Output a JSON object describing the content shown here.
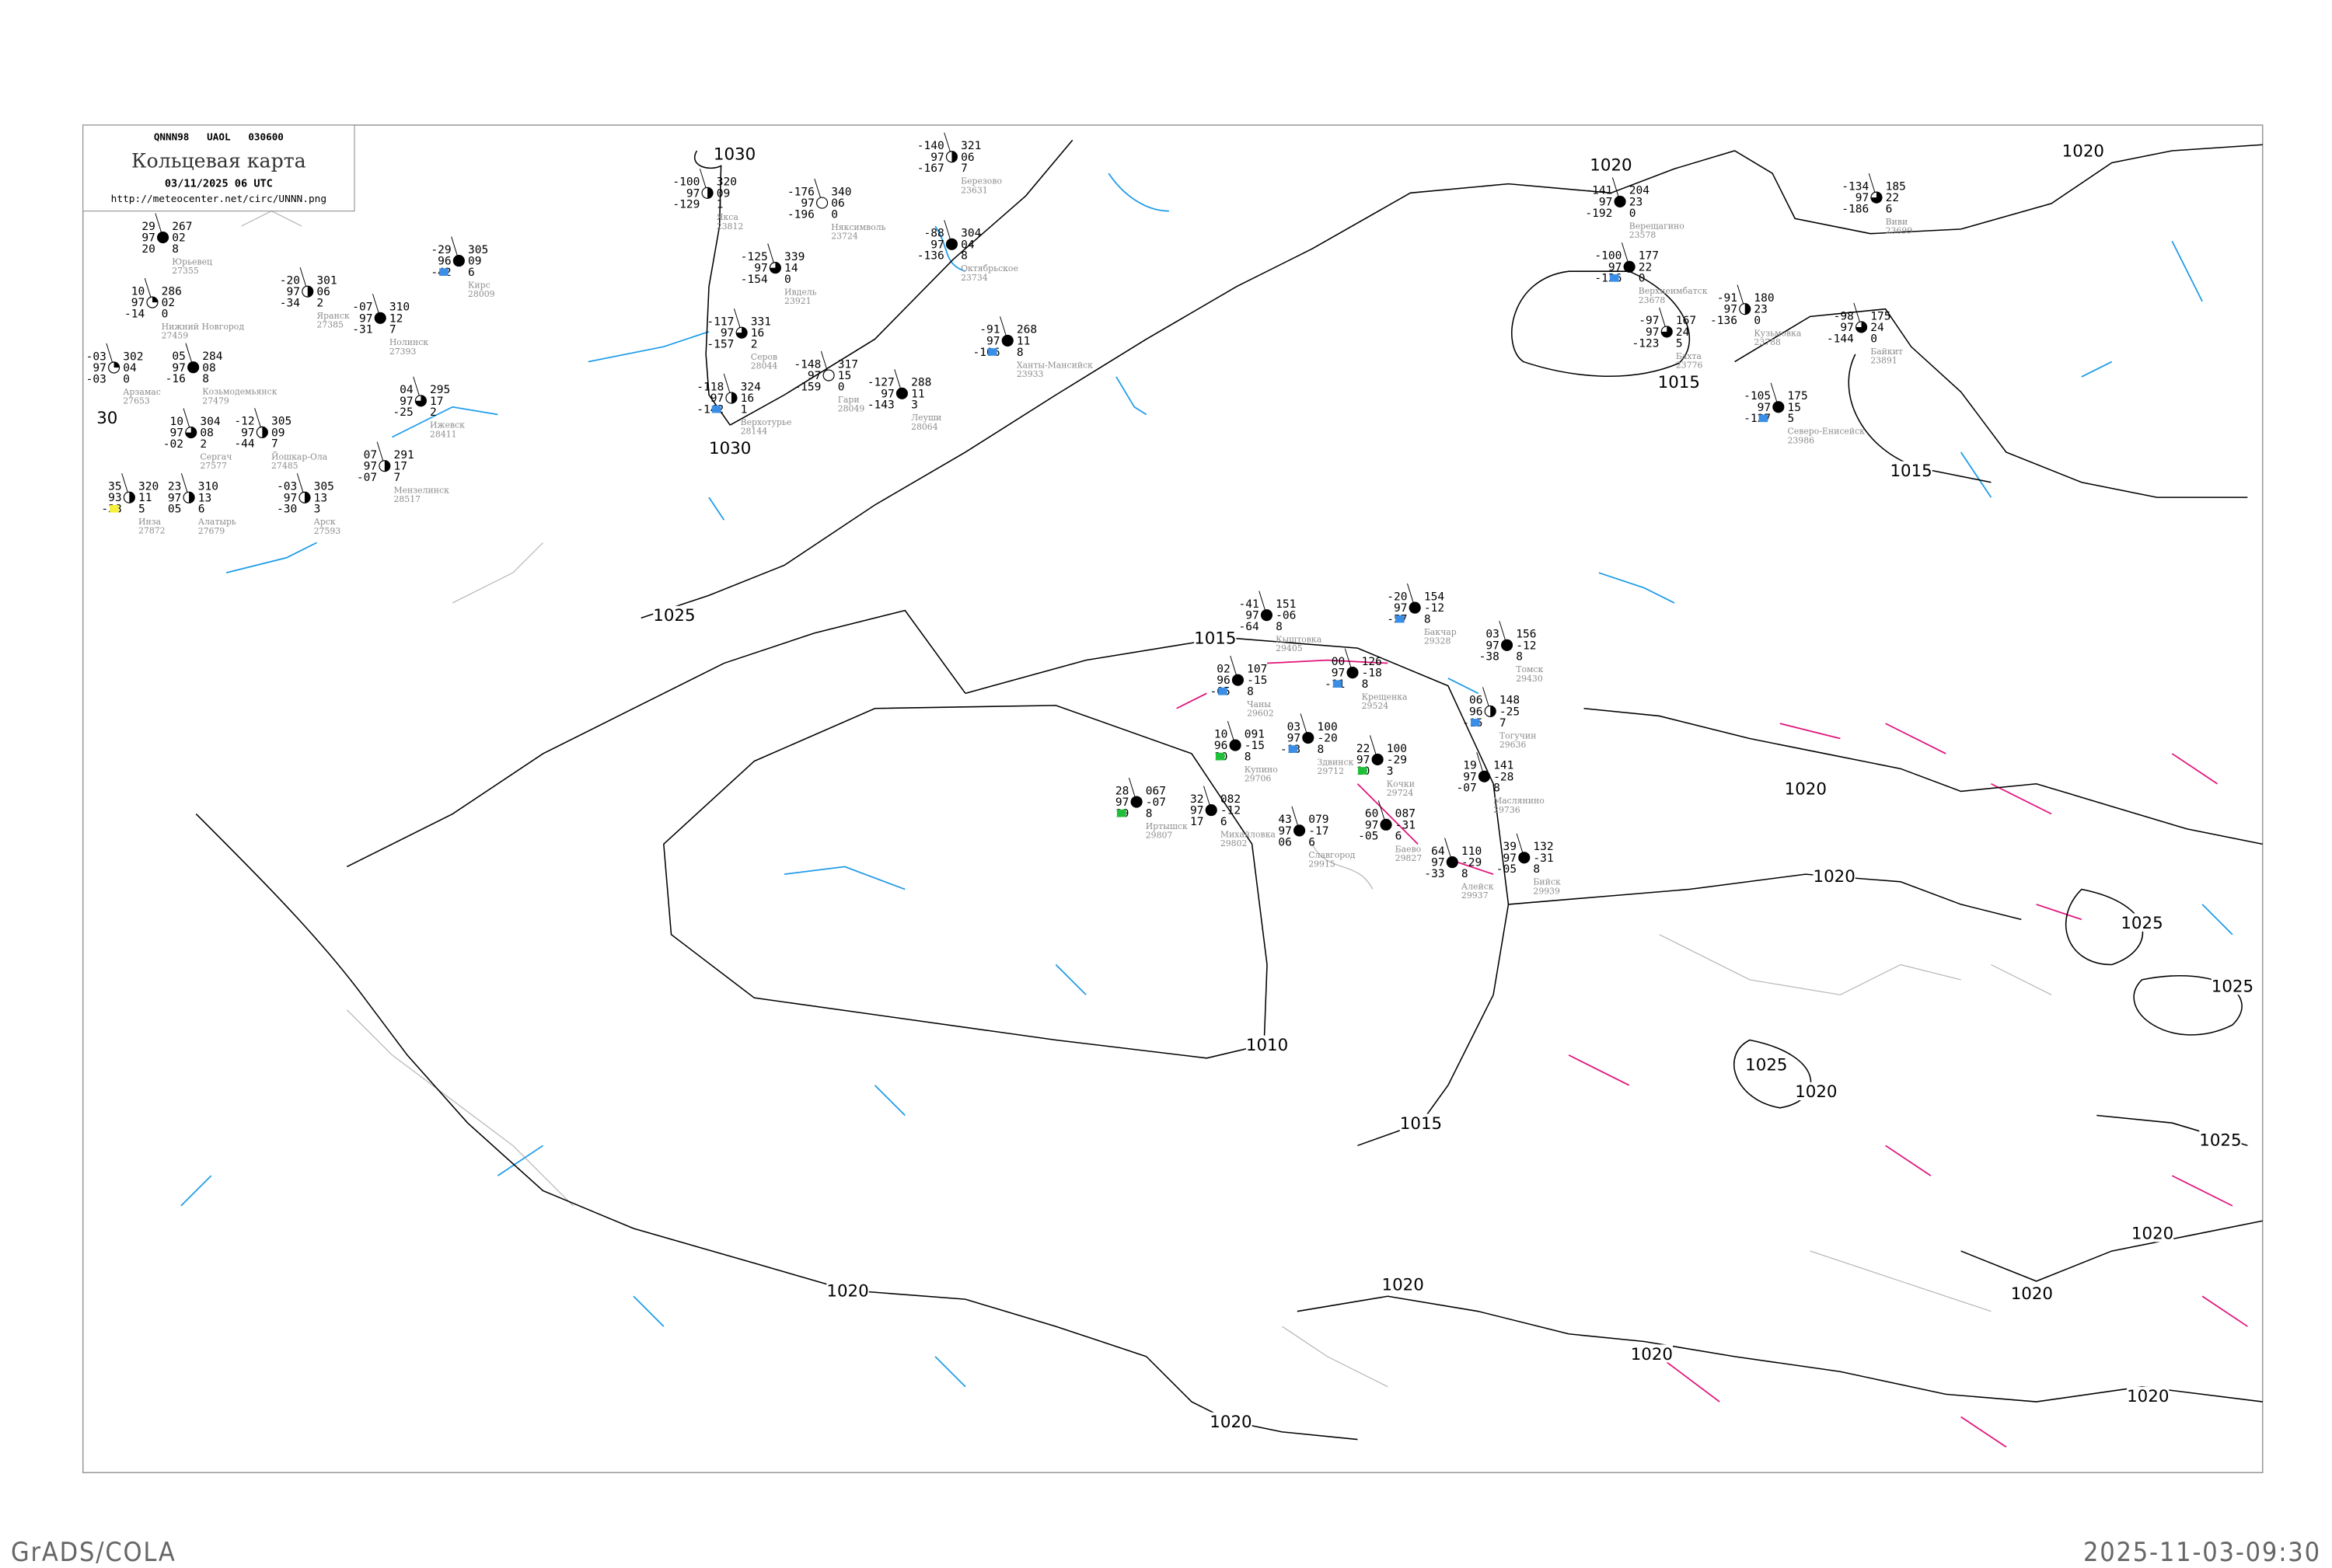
{
  "header": {
    "code_line": "QNNN98   UAOL   030600",
    "title": "Кольцевая карта",
    "datetime": "03/11/2025 06 UTC",
    "url": "http://meteocenter.net/circ/UNNN.png"
  },
  "footer": {
    "left": "GrADS/COLA",
    "right": "2025-11-03-09:30"
  },
  "colors": {
    "isobar": "#000000",
    "isotherm_zero": "#1e9be8",
    "front_segment": "#e0137a",
    "terrain": "#b4b4b4",
    "precip_snow": "#3a8ee6",
    "precip_rain": "#1fbf3a",
    "fog_haze": "#f5f03a",
    "station_name": "#8c8c8c"
  },
  "isobar_labels": [
    "1030",
    "1030",
    "1025",
    "1020",
    "1020",
    "1015",
    "1015",
    "1015",
    "1010",
    "1015",
    "1020",
    "1020",
    "1020",
    "1020",
    "1020",
    "1020",
    "1025",
    "1025",
    "1025",
    "1020",
    "1025",
    "1020",
    "1020",
    "1020",
    "30"
  ],
  "stations": [
    {
      "name": "Якса",
      "id": "23812",
      "temp": "-100",
      "vis": "97",
      "dewpoint": "-129",
      "pressure": "320",
      "tendency": "09",
      "cloud_low": "1",
      "cover": 0.5
    },
    {
      "name": "Няксимволь",
      "id": "23724",
      "temp": "-176",
      "vis": "97",
      "dewpoint": "-196",
      "pressure": "340",
      "tendency": "06",
      "cloud_low": "0",
      "cover": 0
    },
    {
      "name": "Березово",
      "id": "23631",
      "temp": "-140",
      "vis": "97",
      "dewpoint": "-167",
      "pressure": "321",
      "tendency": "06",
      "cloud_low": "7",
      "cover": 0.5
    },
    {
      "name": "Октябрьское",
      "id": "23734",
      "temp": "-88",
      "vis": "97",
      "dewpoint": "-136",
      "pressure": "304",
      "tendency": "04",
      "cloud_low": "8",
      "cover": 1
    },
    {
      "name": "Ивдель",
      "id": "23921",
      "temp": "-125",
      "vis": "97",
      "dewpoint": "-154",
      "pressure": "339",
      "tendency": "14",
      "cloud_low": "0",
      "cover": 0.75
    },
    {
      "name": "Серов",
      "id": "28044",
      "temp": "-117",
      "vis": "97",
      "dewpoint": "-157",
      "pressure": "331",
      "tendency": "16",
      "cloud_low": "2",
      "cover": 0.75
    },
    {
      "name": "Гари",
      "id": "28049",
      "temp": "-148",
      "vis": "97",
      "dewpoint": "-159",
      "pressure": "317",
      "tendency": "15",
      "cloud_low": "0",
      "cover": 0
    },
    {
      "name": "Верхотурье",
      "id": "28144",
      "temp": "-118",
      "vis": "97",
      "dewpoint": "-142",
      "pressure": "324",
      "tendency": "16",
      "cloud_low": "1",
      "cover": 0.5,
      "precip": "snow"
    },
    {
      "name": "Леуши",
      "id": "28064",
      "temp": "-127",
      "vis": "97",
      "dewpoint": "-143",
      "pressure": "288",
      "tendency": "11",
      "cloud_low": "3",
      "cover": 1
    },
    {
      "name": "Ханты-Мансийск",
      "id": "23933",
      "temp": "-91",
      "vis": "97",
      "dewpoint": "-106",
      "pressure": "268",
      "tendency": "11",
      "cloud_low": "8",
      "cover": 1,
      "precip": "snow"
    },
    {
      "name": "Кыштовка",
      "id": "29405",
      "temp": "-41",
      "vis": "97",
      "dewpoint": "-64",
      "pressure": "151",
      "tendency": "-06",
      "cloud_low": "8",
      "cover": 1
    },
    {
      "name": "Бакчар",
      "id": "29328",
      "temp": "-20",
      "vis": "97",
      "dewpoint": "-57",
      "pressure": "154",
      "tendency": "-12",
      "cloud_low": "8",
      "cover": 1,
      "precip": "snow"
    },
    {
      "name": "Томск",
      "id": "29430",
      "temp": "03",
      "vis": "97",
      "dewpoint": "-38",
      "pressure": "156",
      "tendency": "-12",
      "cloud_low": "8",
      "cover": 1
    },
    {
      "name": "Крещенка",
      "id": "29524",
      "temp": "00",
      "vis": "97",
      "dewpoint": "-11",
      "pressure": "126",
      "tendency": "-18",
      "cloud_low": "8",
      "cover": 1,
      "precip": "snow"
    },
    {
      "name": "Чаны",
      "id": "29602",
      "temp": "02",
      "vis": "96",
      "dewpoint": "-05",
      "pressure": "107",
      "tendency": "-15",
      "cloud_low": "8",
      "cover": 1,
      "precip": "snow"
    },
    {
      "name": "Купино",
      "id": "29706",
      "temp": "10",
      "vis": "96",
      "dewpoint": "10",
      "pressure": "091",
      "tendency": "-15",
      "cloud_low": "8",
      "cover": 1,
      "precip": "rain"
    },
    {
      "name": "Здвинск",
      "id": "29712",
      "temp": "03",
      "vis": "97",
      "dewpoint": "-13",
      "pressure": "100",
      "tendency": "-20",
      "cloud_low": "8",
      "cover": 1,
      "precip": "snow"
    },
    {
      "name": "Кочки",
      "id": "29724",
      "temp": "22",
      "vis": "97",
      "dewpoint": "10",
      "pressure": "100",
      "tendency": "-29",
      "cloud_low": "3",
      "cover": 1,
      "precip": "rain"
    },
    {
      "name": "Тогучин",
      "id": "29636",
      "temp": "06",
      "vis": "96",
      "dewpoint": "-15",
      "pressure": "148",
      "tendency": "-25",
      "cloud_low": "7",
      "cover": 0.5,
      "precip": "snow"
    },
    {
      "name": "Маслянино",
      "id": "29736",
      "temp": "19",
      "vis": "97",
      "dewpoint": "-07",
      "pressure": "141",
      "tendency": "-28",
      "cloud_low": "8",
      "cover": 1
    },
    {
      "name": "Михайловка",
      "id": "29802",
      "temp": "32",
      "vis": "97",
      "dewpoint": "17",
      "pressure": "082",
      "tendency": "-12",
      "cloud_low": "6",
      "cover": 1
    },
    {
      "name": "Баево",
      "id": "29827",
      "temp": "60",
      "vis": "97",
      "dewpoint": "-05",
      "pressure": "087",
      "tendency": "-31",
      "cloud_low": "6",
      "cover": 1
    },
    {
      "name": "Славгород",
      "id": "29915",
      "temp": "43",
      "vis": "97",
      "dewpoint": "06",
      "pressure": "079",
      "tendency": "-17",
      "cloud_low": "6",
      "cover": 1
    },
    {
      "name": "Алейск",
      "id": "29937",
      "temp": "64",
      "vis": "97",
      "dewpoint": "-33",
      "pressure": "110",
      "tendency": "-29",
      "cloud_low": "8",
      "cover": 1
    },
    {
      "name": "Бийск",
      "id": "29939",
      "temp": "39",
      "vis": "97",
      "dewpoint": "-05",
      "pressure": "132",
      "tendency": "-31",
      "cloud_low": "8",
      "cover": 1
    },
    {
      "name": "Иртышск",
      "id": "29807",
      "temp": "28",
      "vis": "97",
      "dewpoint": "19",
      "pressure": "067",
      "tendency": "-07",
      "cloud_low": "8",
      "cover": 1,
      "precip": "rain"
    },
    {
      "name": "Нижний Новгород",
      "id": "27459",
      "temp": "10",
      "vis": "97",
      "dewpoint": "-14",
      "pressure": "286",
      "tendency": "02",
      "cloud_low": "0",
      "cover": 0.25
    },
    {
      "name": "Арзамас",
      "id": "27653",
      "temp": "-03",
      "vis": "97",
      "dewpoint": "-03",
      "pressure": "302",
      "tendency": "04",
      "cloud_low": "0",
      "cover": 0.25
    },
    {
      "name": "Сергач",
      "id": "27577",
      "temp": "10",
      "vis": "97",
      "dewpoint": "-02",
      "pressure": "304",
      "tendency": "08",
      "cloud_low": "2",
      "cover": 0.75
    },
    {
      "name": "Козьмодемьянск",
      "id": "27479",
      "temp": "05",
      "vis": "97",
      "dewpoint": "-16",
      "pressure": "284",
      "tendency": "08",
      "cloud_low": "8",
      "cover": 1
    },
    {
      "name": "Йошкар-Ола",
      "id": "27485",
      "temp": "-12",
      "vis": "97",
      "dewpoint": "-44",
      "pressure": "305",
      "tendency": "09",
      "cloud_low": "7",
      "cover": 0.5
    },
    {
      "name": "Яранск",
      "id": "27385",
      "temp": "-20",
      "vis": "97",
      "dewpoint": "-34",
      "pressure": "301",
      "tendency": "06",
      "cloud_low": "2",
      "cover": 0.5
    },
    {
      "name": "Нолинск",
      "id": "27393",
      "temp": "-07",
      "vis": "97",
      "dewpoint": "-31",
      "pressure": "310",
      "tendency": "12",
      "cloud_low": "7",
      "cover": 1
    },
    {
      "name": "Алатырь",
      "id": "27679",
      "temp": "23",
      "vis": "97",
      "dewpoint": "05",
      "pressure": "310",
      "tendency": "13",
      "cloud_low": "6",
      "cover": 0.5
    },
    {
      "name": "Арск",
      "id": "27593",
      "temp": "-03",
      "vis": "97",
      "dewpoint": "-30",
      "pressure": "305",
      "tendency": "13",
      "cloud_low": "3",
      "cover": 0.5
    },
    {
      "name": "Ижевск",
      "id": "28411",
      "temp": "04",
      "vis": "97",
      "dewpoint": "-25",
      "pressure": "295",
      "tendency": "17",
      "cloud_low": "2",
      "cover": 0.75
    },
    {
      "name": "Юрьевец",
      "id": "27355",
      "temp": "29",
      "vis": "97",
      "dewpoint": "20",
      "pressure": "267",
      "tendency": "02",
      "cloud_low": "8",
      "cover": 1
    },
    {
      "name": "Кирс",
      "id": "28009",
      "temp": "-29",
      "vis": "96",
      "dewpoint": "-42",
      "pressure": "305",
      "tendency": "09",
      "cloud_low": "6",
      "cover": 1,
      "precip": "snow"
    },
    {
      "name": "Инза",
      "id": "27872",
      "temp": "35",
      "vis": "93",
      "dewpoint": "-38",
      "pressure": "320",
      "tendency": "11",
      "cloud_low": "5",
      "cover": 0.5,
      "precip": "haze"
    },
    {
      "name": "Мензелинск",
      "id": "28517",
      "temp": "07",
      "vis": "97",
      "dewpoint": "-07",
      "pressure": "291",
      "tendency": "17",
      "cloud_low": "7",
      "cover": 0.5
    },
    {
      "name": "Верещагино",
      "id": "23578",
      "temp": "-141",
      "vis": "97",
      "dewpoint": "-192",
      "pressure": "204",
      "tendency": "23",
      "cloud_low": "0",
      "cover": 1
    },
    {
      "name": "Виви",
      "id": "23699",
      "temp": "-134",
      "vis": "97",
      "dewpoint": "-186",
      "pressure": "185",
      "tendency": "22",
      "cloud_low": "6",
      "cover": 0.75
    },
    {
      "name": "Верхнеимбатск",
      "id": "23678",
      "temp": "-100",
      "vis": "97",
      "dewpoint": "-136",
      "pressure": "177",
      "tendency": "22",
      "cloud_low": "0",
      "cover": 1,
      "precip": "snow"
    },
    {
      "name": "Бахта",
      "id": "23776",
      "temp": "-97",
      "vis": "97",
      "dewpoint": "-123",
      "pressure": "167",
      "tendency": "24",
      "cloud_low": "5",
      "cover": 0.75
    },
    {
      "name": "Кузьмовка",
      "id": "23788",
      "temp": "-91",
      "vis": "97",
      "dewpoint": "-136",
      "pressure": "180",
      "tendency": "23",
      "cloud_low": "0",
      "cover": 0.5
    },
    {
      "name": "Байкит",
      "id": "23891",
      "temp": "-98",
      "vis": "97",
      "dewpoint": "-144",
      "pressure": "175",
      "tendency": "24",
      "cloud_low": "0",
      "cover": 0.75
    },
    {
      "name": "Северо-Енисейск",
      "id": "23986",
      "temp": "-105",
      "vis": "97",
      "dewpoint": "-127",
      "pressure": "175",
      "tendency": "15",
      "cloud_low": "5",
      "cover": 1,
      "precip": "snow"
    }
  ]
}
